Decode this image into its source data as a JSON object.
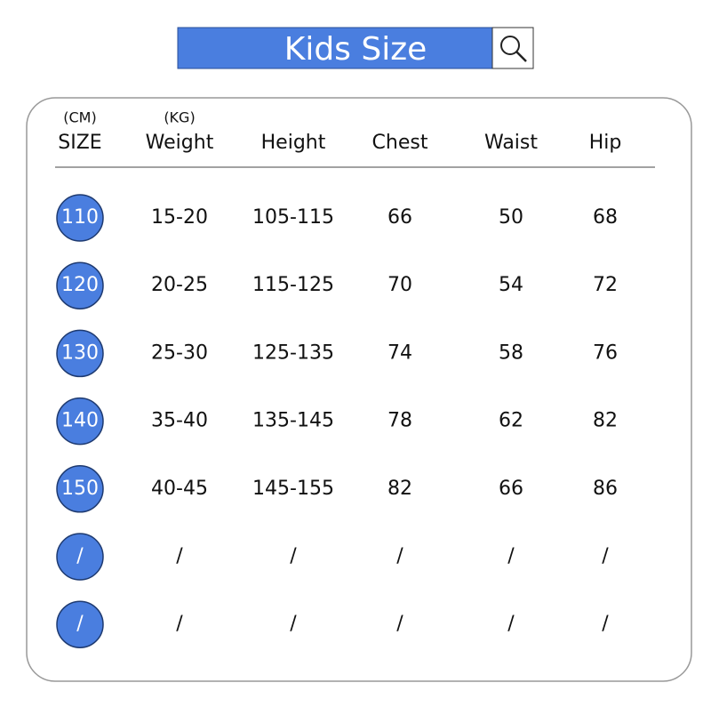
{
  "header": {
    "title": "Kids Size"
  },
  "table": {
    "units": [
      "(CM)",
      "(KG)"
    ],
    "columns": [
      "SIZE",
      "Weight",
      "Height",
      "Chest",
      "Waist",
      "Hip"
    ],
    "rows": [
      [
        "110",
        "15-20",
        "105-115",
        "66",
        "50",
        "68"
      ],
      [
        "120",
        "20-25",
        "115-125",
        "70",
        "54",
        "72"
      ],
      [
        "130",
        "25-30",
        "125-135",
        "74",
        "58",
        "76"
      ],
      [
        "140",
        "35-40",
        "135-145",
        "78",
        "62",
        "82"
      ],
      [
        "150",
        "40-45",
        "145-155",
        "82",
        "66",
        "86"
      ],
      [
        "/",
        "/",
        "/",
        "/",
        "/",
        "/"
      ],
      [
        "/",
        "/",
        "/",
        "/",
        "/",
        "/"
      ]
    ]
  }
}
